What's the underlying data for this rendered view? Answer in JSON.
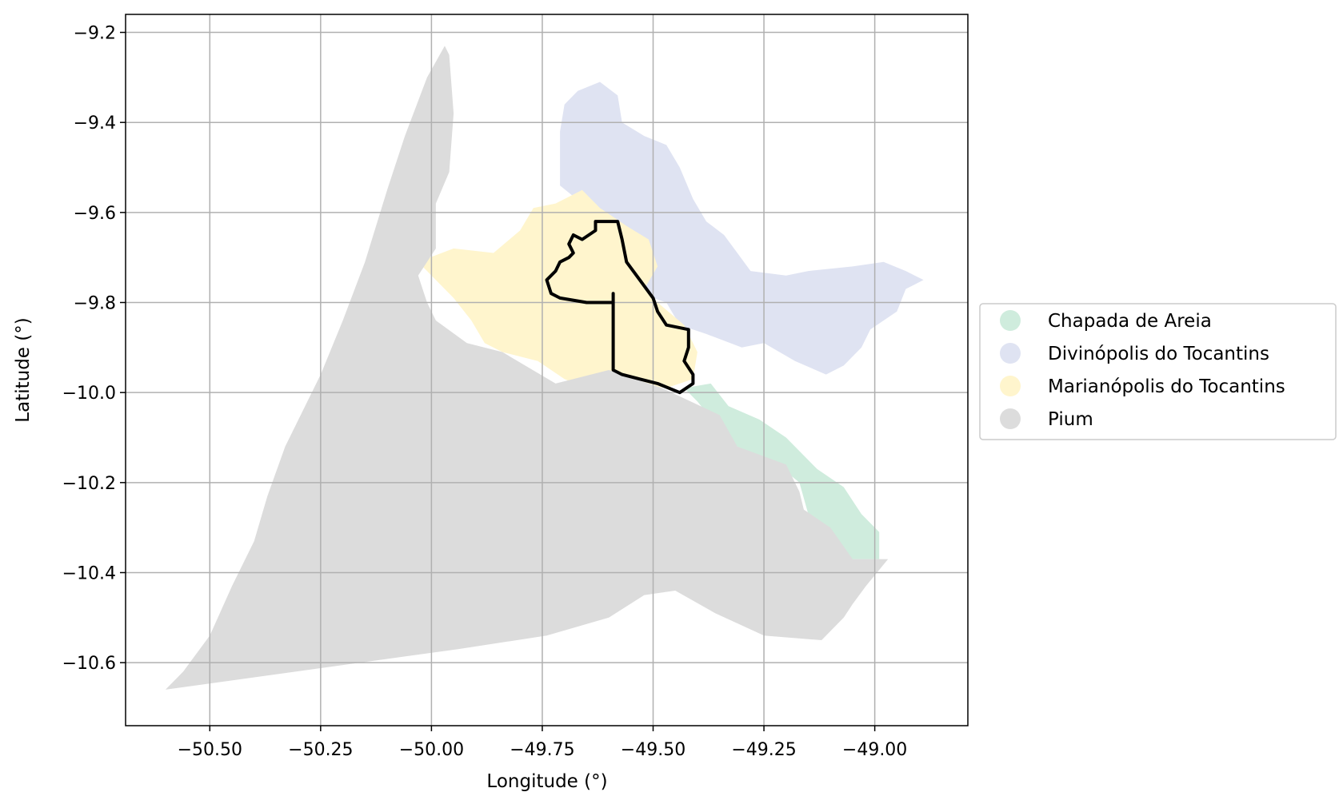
{
  "chart_data": {
    "type": "map",
    "xlabel": "Longitude (°)",
    "ylabel": "Latitude (°)",
    "xlim": [
      -50.69,
      -48.79
    ],
    "ylim": [
      -10.74,
      -9.16
    ],
    "grid": true,
    "x_ticks": [
      -50.5,
      -50.25,
      -50.0,
      -49.75,
      -49.5,
      -49.25,
      -49.0
    ],
    "x_tick_labels": [
      "−50.50",
      "−50.25",
      "−50.00",
      "−49.75",
      "−49.50",
      "−49.25",
      "−49.00"
    ],
    "y_ticks": [
      -9.2,
      -9.4,
      -9.6,
      -9.8,
      -10.0,
      -10.2,
      -10.4,
      -10.6
    ],
    "y_tick_labels": [
      "−9.2",
      "−9.4",
      "−9.6",
      "−9.8",
      "−10.0",
      "−10.2",
      "−10.4",
      "−10.6"
    ],
    "legend_position": "right",
    "regions": [
      {
        "name": "Chapada de Areia",
        "color": "#cfecdd",
        "polygon": [
          [
            -49.43,
            -9.99
          ],
          [
            -49.37,
            -9.98
          ],
          [
            -49.33,
            -10.03
          ],
          [
            -49.26,
            -10.06
          ],
          [
            -49.2,
            -10.1
          ],
          [
            -49.13,
            -10.17
          ],
          [
            -49.07,
            -10.21
          ],
          [
            -49.03,
            -10.27
          ],
          [
            -48.99,
            -10.31
          ],
          [
            -48.99,
            -10.37
          ],
          [
            -49.05,
            -10.37
          ],
          [
            -49.1,
            -10.33
          ],
          [
            -49.15,
            -10.27
          ],
          [
            -49.17,
            -10.2
          ],
          [
            -49.22,
            -10.16
          ],
          [
            -49.3,
            -10.13
          ],
          [
            -49.35,
            -10.08
          ],
          [
            -49.4,
            -10.02
          ]
        ]
      },
      {
        "name": "Divinópolis do Tocantins",
        "color": "#dfe3f2",
        "polygon": [
          [
            -49.71,
            -9.42
          ],
          [
            -49.7,
            -9.36
          ],
          [
            -49.67,
            -9.33
          ],
          [
            -49.62,
            -9.31
          ],
          [
            -49.58,
            -9.34
          ],
          [
            -49.57,
            -9.4
          ],
          [
            -49.52,
            -9.43
          ],
          [
            -49.47,
            -9.45
          ],
          [
            -49.44,
            -9.5
          ],
          [
            -49.41,
            -9.57
          ],
          [
            -49.38,
            -9.62
          ],
          [
            -49.34,
            -9.65
          ],
          [
            -49.31,
            -9.69
          ],
          [
            -49.28,
            -9.73
          ],
          [
            -49.2,
            -9.74
          ],
          [
            -49.15,
            -9.73
          ],
          [
            -49.05,
            -9.72
          ],
          [
            -48.98,
            -9.71
          ],
          [
            -48.93,
            -9.73
          ],
          [
            -48.89,
            -9.75
          ],
          [
            -48.93,
            -9.77
          ],
          [
            -48.95,
            -9.82
          ],
          [
            -49.01,
            -9.86
          ],
          [
            -49.03,
            -9.9
          ],
          [
            -49.07,
            -9.94
          ],
          [
            -49.11,
            -9.96
          ],
          [
            -49.18,
            -9.93
          ],
          [
            -49.25,
            -9.89
          ],
          [
            -49.3,
            -9.9
          ],
          [
            -49.38,
            -9.87
          ],
          [
            -49.44,
            -9.85
          ],
          [
            -49.47,
            -9.8
          ],
          [
            -49.53,
            -9.78
          ],
          [
            -49.56,
            -9.75
          ],
          [
            -49.54,
            -9.7
          ],
          [
            -49.62,
            -9.64
          ],
          [
            -49.66,
            -9.58
          ],
          [
            -49.71,
            -9.54
          ],
          [
            -49.71,
            -9.48
          ]
        ]
      },
      {
        "name": "Marianópolis do Tocantins",
        "color": "#fff5cd",
        "polygon": [
          [
            -49.77,
            -9.59
          ],
          [
            -49.72,
            -9.58
          ],
          [
            -49.66,
            -9.55
          ],
          [
            -49.62,
            -9.59
          ],
          [
            -49.56,
            -9.63
          ],
          [
            -49.51,
            -9.66
          ],
          [
            -49.49,
            -9.72
          ],
          [
            -49.52,
            -9.77
          ],
          [
            -49.49,
            -9.8
          ],
          [
            -49.43,
            -9.85
          ],
          [
            -49.4,
            -9.91
          ],
          [
            -49.41,
            -9.97
          ],
          [
            -49.47,
            -9.99
          ],
          [
            -49.55,
            -9.98
          ],
          [
            -49.61,
            -9.97
          ],
          [
            -49.65,
            -9.99
          ],
          [
            -49.7,
            -9.97
          ],
          [
            -49.76,
            -9.93
          ],
          [
            -49.84,
            -9.91
          ],
          [
            -49.88,
            -9.89
          ],
          [
            -49.91,
            -9.84
          ],
          [
            -49.95,
            -9.79
          ],
          [
            -50.0,
            -9.74
          ],
          [
            -50.03,
            -9.71
          ],
          [
            -49.95,
            -9.68
          ],
          [
            -49.86,
            -9.69
          ],
          [
            -49.8,
            -9.64
          ]
        ]
      },
      {
        "name": "Pium",
        "color": "#dcdcdc",
        "polygon": [
          [
            -49.97,
            -9.23
          ],
          [
            -49.96,
            -9.25
          ],
          [
            -49.95,
            -9.38
          ],
          [
            -49.96,
            -9.51
          ],
          [
            -49.99,
            -9.58
          ],
          [
            -49.99,
            -9.68
          ],
          [
            -50.03,
            -9.74
          ],
          [
            -50.01,
            -9.8
          ],
          [
            -49.99,
            -9.84
          ],
          [
            -49.92,
            -9.89
          ],
          [
            -49.84,
            -9.91
          ],
          [
            -49.72,
            -9.98
          ],
          [
            -49.6,
            -9.95
          ],
          [
            -49.48,
            -9.99
          ],
          [
            -49.35,
            -10.05
          ],
          [
            -49.31,
            -10.12
          ],
          [
            -49.2,
            -10.16
          ],
          [
            -49.17,
            -10.22
          ],
          [
            -49.16,
            -10.26
          ],
          [
            -49.1,
            -10.3
          ],
          [
            -49.05,
            -10.37
          ],
          [
            -48.97,
            -10.37
          ],
          [
            -49.02,
            -10.43
          ],
          [
            -49.05,
            -10.47
          ],
          [
            -49.07,
            -10.5
          ],
          [
            -49.12,
            -10.55
          ],
          [
            -49.25,
            -10.54
          ],
          [
            -49.36,
            -10.49
          ],
          [
            -49.45,
            -10.44
          ],
          [
            -49.52,
            -10.45
          ],
          [
            -49.6,
            -10.5
          ],
          [
            -49.74,
            -10.54
          ],
          [
            -49.94,
            -10.57
          ],
          [
            -50.6,
            -10.66
          ],
          [
            -50.56,
            -10.62
          ],
          [
            -50.5,
            -10.54
          ],
          [
            -50.45,
            -10.43
          ],
          [
            -50.4,
            -10.33
          ],
          [
            -50.37,
            -10.23
          ],
          [
            -50.33,
            -10.12
          ],
          [
            -50.25,
            -9.96
          ],
          [
            -50.2,
            -9.84
          ],
          [
            -50.15,
            -9.71
          ],
          [
            -50.1,
            -9.55
          ],
          [
            -50.06,
            -9.43
          ],
          [
            -50.01,
            -9.3
          ]
        ]
      }
    ],
    "highlight_outline": {
      "color": "#000000",
      "polygon": [
        [
          -49.58,
          -9.62
        ],
        [
          -49.61,
          -9.62
        ],
        [
          -49.63,
          -9.62
        ],
        [
          -49.63,
          -9.64
        ],
        [
          -49.66,
          -9.66
        ],
        [
          -49.68,
          -9.65
        ],
        [
          -49.69,
          -9.67
        ],
        [
          -49.68,
          -9.69
        ],
        [
          -49.69,
          -9.7
        ],
        [
          -49.71,
          -9.71
        ],
        [
          -49.72,
          -9.73
        ],
        [
          -49.74,
          -9.75
        ],
        [
          -49.73,
          -9.78
        ],
        [
          -49.71,
          -9.79
        ],
        [
          -49.65,
          -9.8
        ],
        [
          -49.62,
          -9.8
        ],
        [
          -49.59,
          -9.8
        ],
        [
          -49.59,
          -9.78
        ],
        [
          -49.59,
          -9.95
        ],
        [
          -49.57,
          -9.96
        ],
        [
          -49.53,
          -9.97
        ],
        [
          -49.49,
          -9.98
        ],
        [
          -49.44,
          -10.0
        ],
        [
          -49.41,
          -9.98
        ],
        [
          -49.41,
          -9.96
        ],
        [
          -49.43,
          -9.93
        ],
        [
          -49.42,
          -9.9
        ],
        [
          -49.42,
          -9.86
        ],
        [
          -49.47,
          -9.85
        ],
        [
          -49.49,
          -9.82
        ],
        [
          -49.5,
          -9.79
        ],
        [
          -49.53,
          -9.75
        ],
        [
          -49.56,
          -9.71
        ],
        [
          -49.57,
          -9.66
        ]
      ]
    }
  }
}
